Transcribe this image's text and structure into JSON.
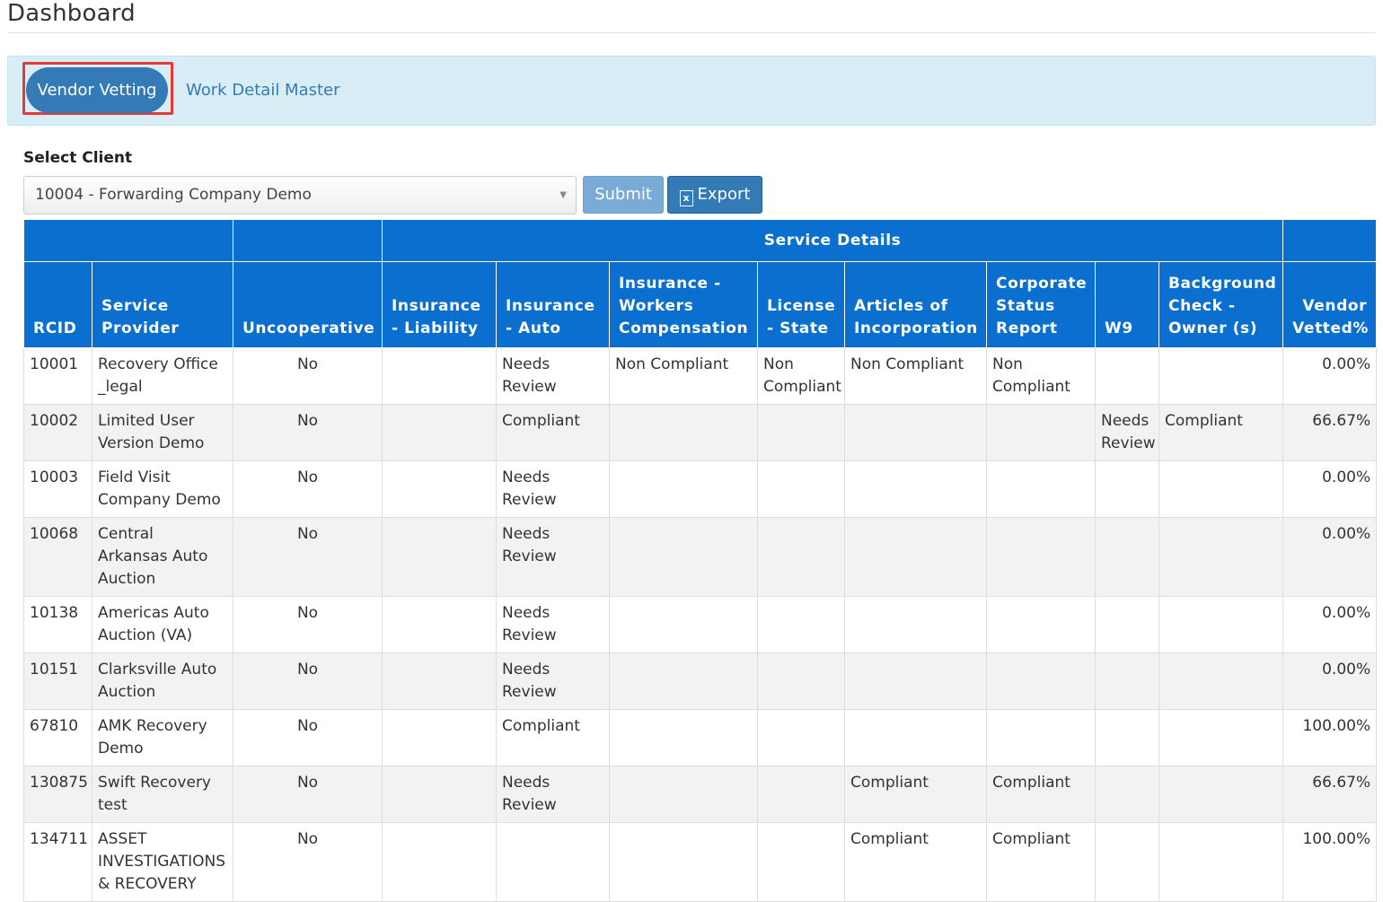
{
  "page": {
    "title": "Dashboard"
  },
  "tabs": [
    {
      "label": "Vendor Vetting",
      "active": true
    },
    {
      "label": "Work Detail Master",
      "active": false
    }
  ],
  "client": {
    "label": "Select Client",
    "selected": "10004 - Forwarding Company Demo"
  },
  "buttons": {
    "submit": "Submit",
    "export": "Export"
  },
  "table": {
    "group_header": "Service Details",
    "columns": [
      "RCID",
      "Service Provider",
      "Uncooperative",
      "Insurance - Liability",
      "Insurance - Auto",
      "Insurance - Workers Compensation",
      "License - State",
      "Articles of Incorporation",
      "Corporate Status Report",
      "W9",
      "Background Check - Owner (s)",
      "Vendor Vetted%"
    ],
    "rows": [
      [
        "10001",
        "Recovery Office _legal",
        "No",
        "",
        "Needs Review",
        "Non Compliant",
        "Non Compliant",
        "Non Compliant",
        "Non Compliant",
        "",
        "",
        "0.00%"
      ],
      [
        "10002",
        "Limited User Version Demo",
        "No",
        "",
        "Compliant",
        "",
        "",
        "",
        "",
        "Needs Review",
        "Compliant",
        "66.67%"
      ],
      [
        "10003",
        "Field Visit Company Demo",
        "No",
        "",
        "Needs Review",
        "",
        "",
        "",
        "",
        "",
        "",
        "0.00%"
      ],
      [
        "10068",
        "Central Arkansas Auto Auction",
        "No",
        "",
        "Needs Review",
        "",
        "",
        "",
        "",
        "",
        "",
        "0.00%"
      ],
      [
        "10138",
        "Americas Auto Auction (VA)",
        "No",
        "",
        "Needs Review",
        "",
        "",
        "",
        "",
        "",
        "",
        "0.00%"
      ],
      [
        "10151",
        "Clarksville Auto Auction",
        "No",
        "",
        "Needs Review",
        "",
        "",
        "",
        "",
        "",
        "",
        "0.00%"
      ],
      [
        "67810",
        "AMK Recovery Demo",
        "No",
        "",
        "Compliant",
        "",
        "",
        "",
        "",
        "",
        "",
        "100.00%"
      ],
      [
        "130875",
        "Swift Recovery test",
        "No",
        "",
        "Needs Review",
        "",
        "",
        "Compliant",
        "Compliant",
        "",
        "",
        "66.67%"
      ],
      [
        "134711",
        "ASSET INVESTIGATIONS & RECOVERY",
        "No",
        "",
        "",
        "",
        "",
        "Compliant",
        "Compliant",
        "",
        "",
        "100.00%"
      ]
    ]
  }
}
